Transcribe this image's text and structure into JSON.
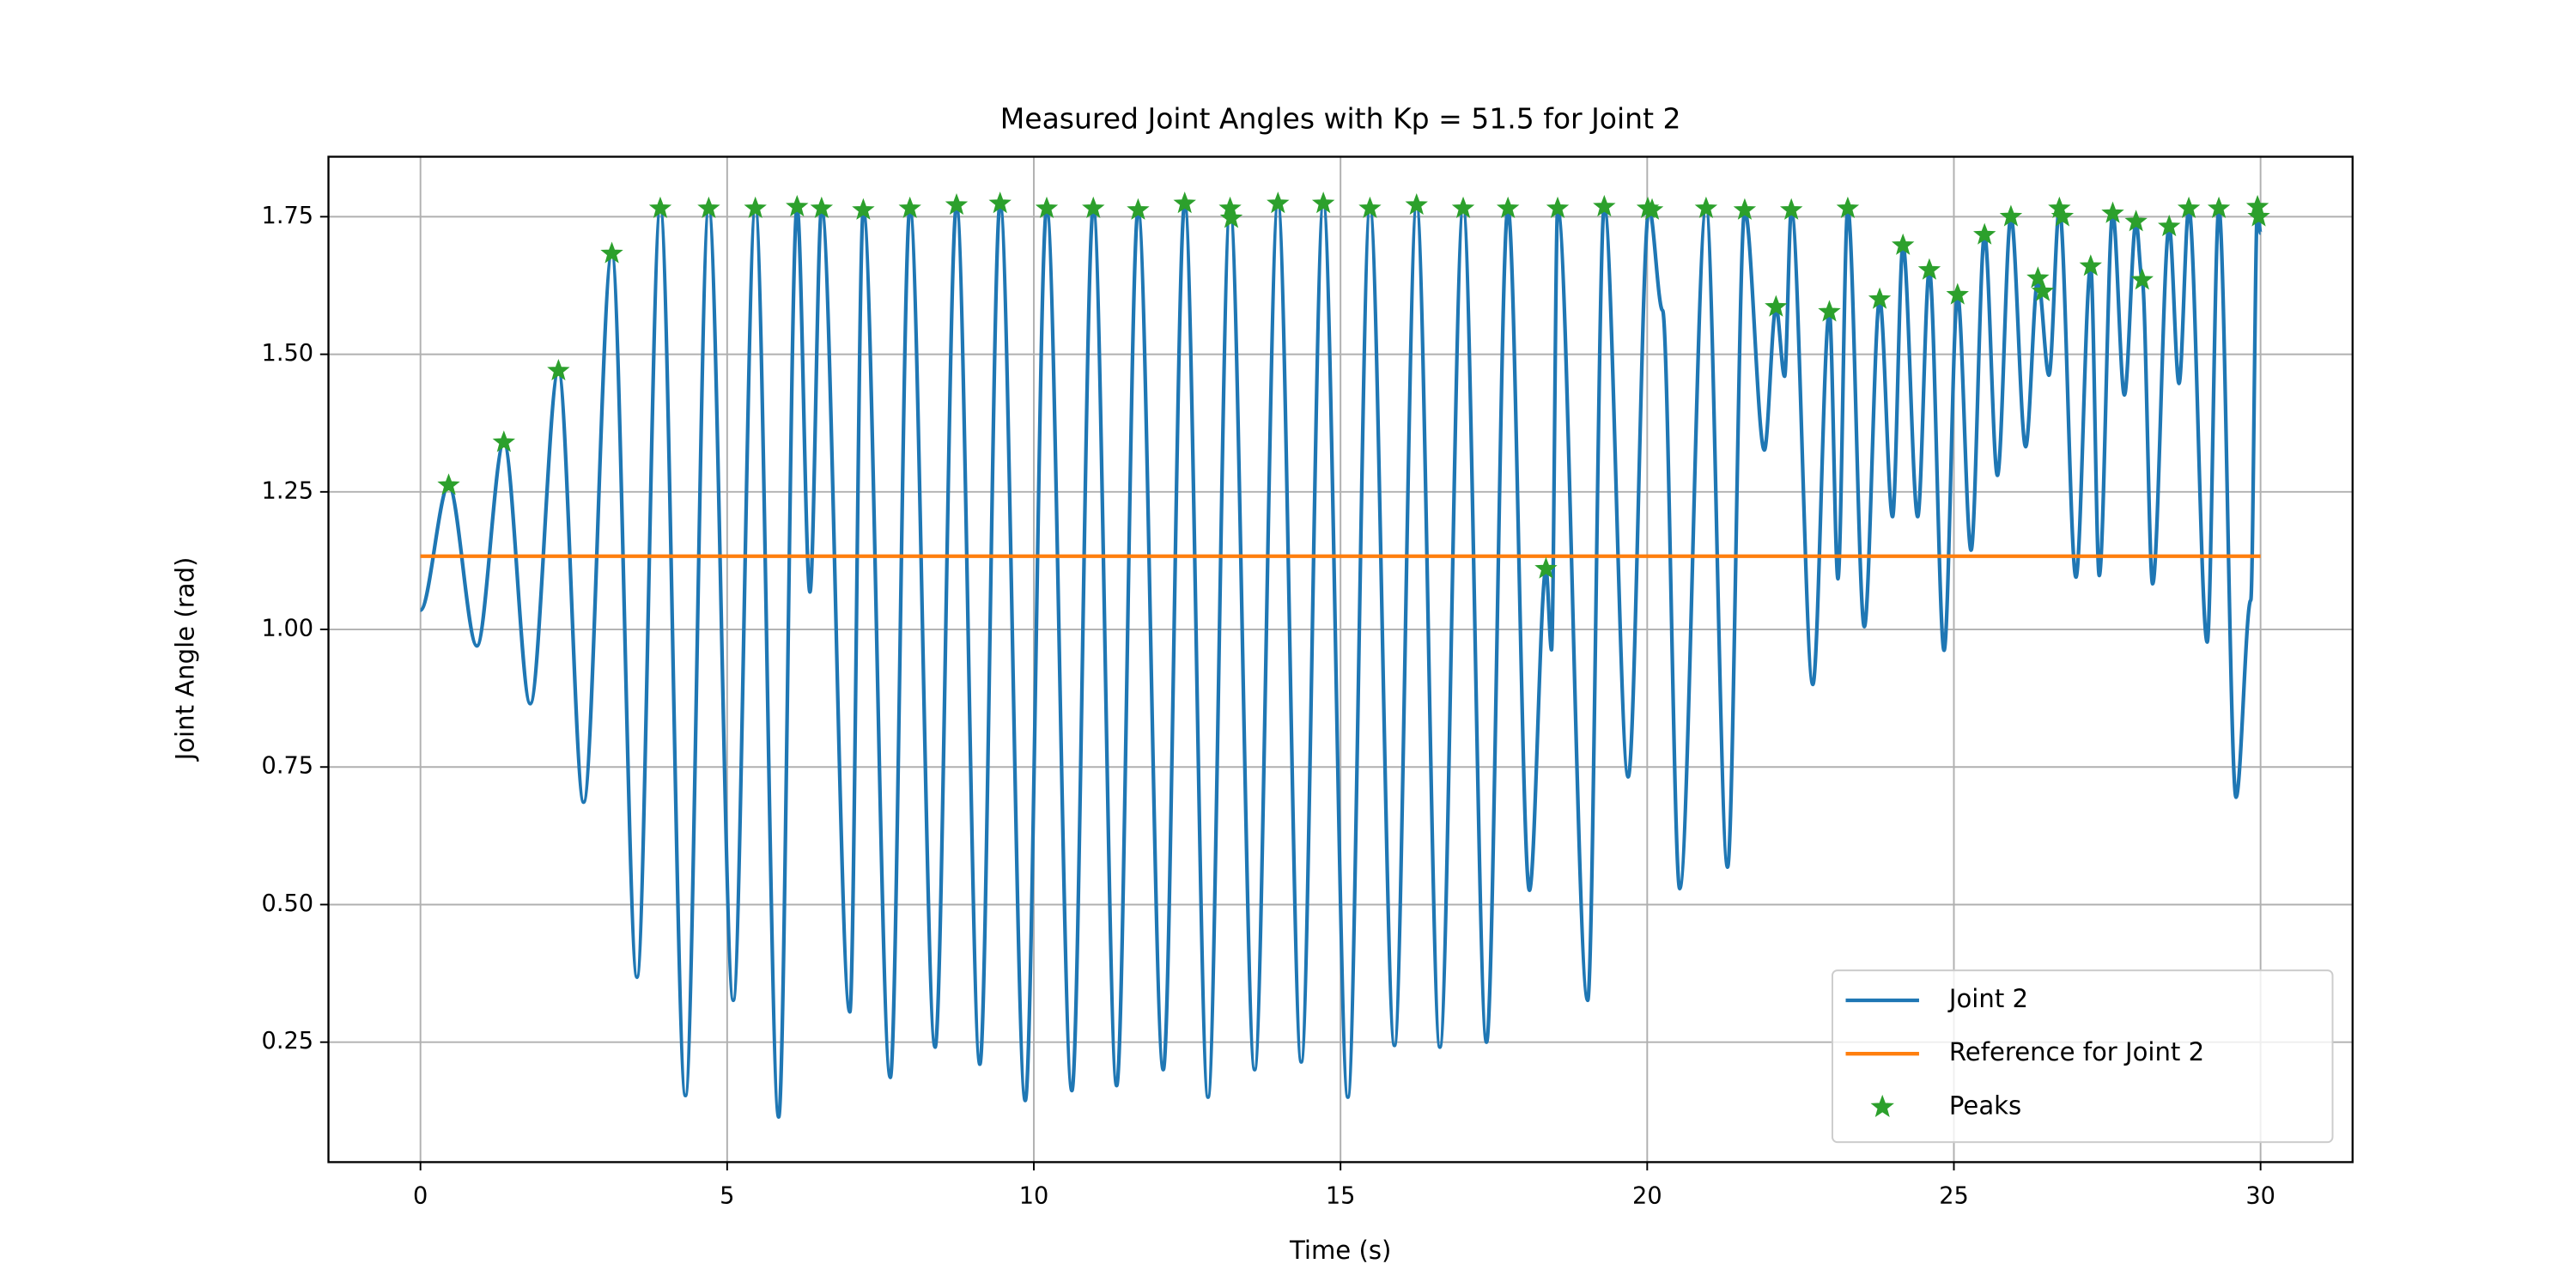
{
  "chart_data": {
    "type": "line",
    "title": "Measured Joint Angles with Kp = 51.5 for Joint 2",
    "x_label": "Time (s)",
    "y_label": "Joint Angle (rad)",
    "xlim": [
      -1.5,
      31.5
    ],
    "ylim": [
      0.032,
      1.859
    ],
    "xticks": [
      0,
      5,
      10,
      15,
      20,
      25,
      30
    ],
    "yticks": [
      {
        "value": 0.25,
        "label": "0.25"
      },
      {
        "value": 0.5,
        "label": "0.50"
      },
      {
        "value": 0.75,
        "label": "0.75"
      },
      {
        "value": 1.0,
        "label": "1.00"
      },
      {
        "value": 1.25,
        "label": "1.25"
      },
      {
        "value": 1.5,
        "label": "1.50"
      },
      {
        "value": 1.75,
        "label": "1.75"
      }
    ],
    "grid": true,
    "legend_loc": "lower right",
    "series": [
      {
        "name": "Joint 2",
        "color": "#1f77b4",
        "style": "line",
        "x": [
          0,
          0.46,
          0.92,
          1.36,
          1.79,
          2.25,
          2.66,
          3.12,
          3.53,
          3.91,
          4.32,
          4.7,
          5.1,
          5.46,
          5.84,
          6.14,
          6.35,
          6.54,
          7.0,
          7.22,
          7.66,
          7.98,
          8.39,
          8.74,
          9.12,
          9.45,
          9.86,
          10.21,
          10.62,
          10.97,
          11.35,
          11.7,
          12.11,
          12.46,
          12.84,
          13.2,
          13.6,
          13.98,
          14.36,
          14.72,
          15.12,
          15.48,
          15.88,
          16.24,
          16.62,
          17.0,
          17.38,
          17.73,
          18.08,
          18.35,
          18.44,
          18.54,
          19.03,
          19.3,
          19.69,
          20.03,
          20.25,
          20.53,
          20.96,
          21.31,
          21.59,
          21.91,
          22.1,
          22.24,
          22.35,
          22.7,
          22.97,
          23.11,
          23.27,
          23.54,
          23.79,
          24.0,
          24.17,
          24.41,
          24.6,
          24.84,
          25.06,
          25.28,
          25.5,
          25.71,
          25.93,
          26.17,
          26.37,
          26.55,
          26.72,
          26.99,
          27.23,
          27.37,
          27.59,
          27.78,
          27.97,
          28.07,
          28.24,
          28.51,
          28.67,
          28.83,
          29.13,
          29.32,
          29.6,
          29.84,
          29.95,
          30.0
        ],
        "values": [
          1.035,
          1.262,
          0.97,
          1.34,
          0.865,
          1.47,
          0.686,
          1.683,
          0.368,
          1.765,
          0.153,
          1.765,
          0.326,
          1.765,
          0.114,
          1.768,
          1.068,
          1.765,
          0.305,
          1.762,
          0.186,
          1.765,
          0.241,
          1.771,
          0.21,
          1.774,
          0.144,
          1.765,
          0.162,
          1.765,
          0.171,
          1.762,
          0.2,
          1.774,
          0.15,
          1.765,
          0.2,
          1.774,
          0.214,
          1.774,
          0.15,
          1.765,
          0.244,
          1.771,
          0.241,
          1.765,
          0.25,
          1.765,
          0.526,
          1.11,
          0.963,
          1.765,
          0.326,
          1.768,
          0.732,
          1.765,
          1.58,
          0.529,
          1.765,
          0.568,
          1.762,
          1.326,
          1.586,
          1.46,
          1.762,
          0.9,
          1.577,
          1.092,
          1.765,
          1.005,
          1.6,
          1.205,
          1.698,
          1.205,
          1.653,
          0.962,
          1.608,
          1.144,
          1.717,
          1.28,
          1.75,
          1.332,
          1.638,
          1.462,
          1.765,
          1.095,
          1.66,
          1.098,
          1.756,
          1.426,
          1.741,
          1.635,
          1.083,
          1.732,
          1.447,
          1.765,
          0.977,
          1.765,
          0.695,
          1.053,
          1.768,
          1.72
        ]
      },
      {
        "name": "Reference for Joint 2",
        "color": "#ff7f0e",
        "style": "line",
        "x": [
          0,
          30
        ],
        "values": [
          1.133,
          1.133
        ]
      },
      {
        "name": "Peaks",
        "color": "#2ca02c",
        "style": "star",
        "x": [
          0.46,
          1.36,
          2.25,
          3.12,
          3.91,
          4.7,
          5.46,
          6.14,
          6.54,
          7.22,
          7.98,
          8.74,
          9.45,
          10.21,
          10.97,
          11.7,
          12.46,
          13.2,
          13.22,
          13.98,
          14.72,
          15.48,
          16.24,
          17.0,
          17.73,
          18.35,
          18.54,
          19.3,
          20.01,
          20.08,
          20.96,
          21.59,
          22.1,
          22.35,
          22.97,
          23.27,
          23.79,
          24.17,
          24.6,
          25.06,
          25.5,
          25.93,
          26.37,
          26.45,
          26.72,
          26.77,
          27.23,
          27.59,
          27.97,
          28.07,
          28.51,
          28.83,
          29.32,
          29.95,
          29.97
        ],
        "values": [
          1.262,
          1.34,
          1.47,
          1.683,
          1.765,
          1.765,
          1.765,
          1.768,
          1.765,
          1.762,
          1.765,
          1.771,
          1.774,
          1.765,
          1.765,
          1.762,
          1.774,
          1.765,
          1.747,
          1.774,
          1.774,
          1.765,
          1.771,
          1.765,
          1.765,
          1.11,
          1.765,
          1.768,
          1.765,
          1.762,
          1.765,
          1.762,
          1.586,
          1.762,
          1.577,
          1.765,
          1.6,
          1.698,
          1.653,
          1.608,
          1.717,
          1.75,
          1.638,
          1.614,
          1.765,
          1.75,
          1.66,
          1.756,
          1.741,
          1.635,
          1.732,
          1.765,
          1.765,
          1.768,
          1.75
        ]
      }
    ]
  }
}
